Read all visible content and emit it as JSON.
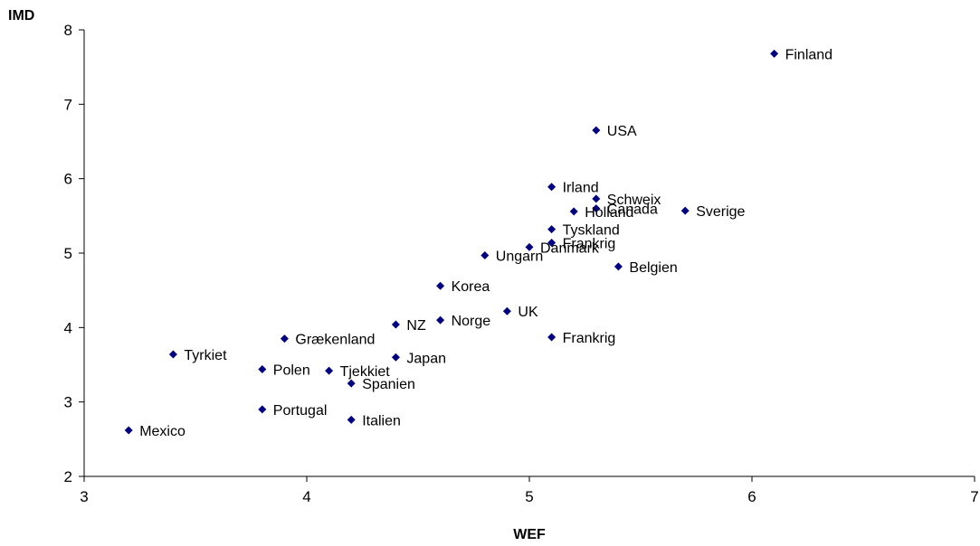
{
  "chart_data": {
    "type": "scatter",
    "xlabel": "WEF",
    "ylabel": "IMD",
    "xlim": [
      3,
      7
    ],
    "ylim": [
      2,
      8
    ],
    "xticks": [
      "3",
      "4",
      "5",
      "6",
      "7"
    ],
    "yticks": [
      "2",
      "3",
      "4",
      "5",
      "6",
      "7",
      "8"
    ],
    "grid": false,
    "marker_color": "#000080",
    "points": [
      {
        "label": "Finland",
        "x": 6.1,
        "y": 7.68
      },
      {
        "label": "USA",
        "x": 5.3,
        "y": 6.65
      },
      {
        "label": "Irland",
        "x": 5.1,
        "y": 5.89
      },
      {
        "label": "Schweix",
        "x": 5.3,
        "y": 5.73
      },
      {
        "label": "Canada",
        "x": 5.3,
        "y": 5.6
      },
      {
        "label": "Holland",
        "x": 5.2,
        "y": 5.56
      },
      {
        "label": "Sverige",
        "x": 5.7,
        "y": 5.57
      },
      {
        "label": "Tyskland",
        "x": 5.1,
        "y": 5.32
      },
      {
        "label": "Frankrig",
        "x": 5.1,
        "y": 5.14
      },
      {
        "label": "Danmark",
        "x": 5.0,
        "y": 5.08
      },
      {
        "label": "Ungarn",
        "x": 4.8,
        "y": 4.97
      },
      {
        "label": "Belgien",
        "x": 5.4,
        "y": 4.82
      },
      {
        "label": "Korea",
        "x": 4.6,
        "y": 4.56
      },
      {
        "label": "UK",
        "x": 4.9,
        "y": 4.22
      },
      {
        "label": "Norge",
        "x": 4.6,
        "y": 4.1
      },
      {
        "label": "NZ",
        "x": 4.4,
        "y": 4.04
      },
      {
        "label": "Frankrig",
        "x": 5.1,
        "y": 3.87
      },
      {
        "label": "Grækenland",
        "x": 3.9,
        "y": 3.85
      },
      {
        "label": "Tyrkiet",
        "x": 3.4,
        "y": 3.64
      },
      {
        "label": "Japan",
        "x": 4.4,
        "y": 3.6
      },
      {
        "label": "Polen",
        "x": 3.8,
        "y": 3.44
      },
      {
        "label": "Tjekkiet",
        "x": 4.1,
        "y": 3.42
      },
      {
        "label": "Spanien",
        "x": 4.2,
        "y": 3.25
      },
      {
        "label": "Portugal",
        "x": 3.8,
        "y": 2.9
      },
      {
        "label": "Italien",
        "x": 4.2,
        "y": 2.76
      },
      {
        "label": "Mexico",
        "x": 3.2,
        "y": 2.62
      }
    ]
  }
}
